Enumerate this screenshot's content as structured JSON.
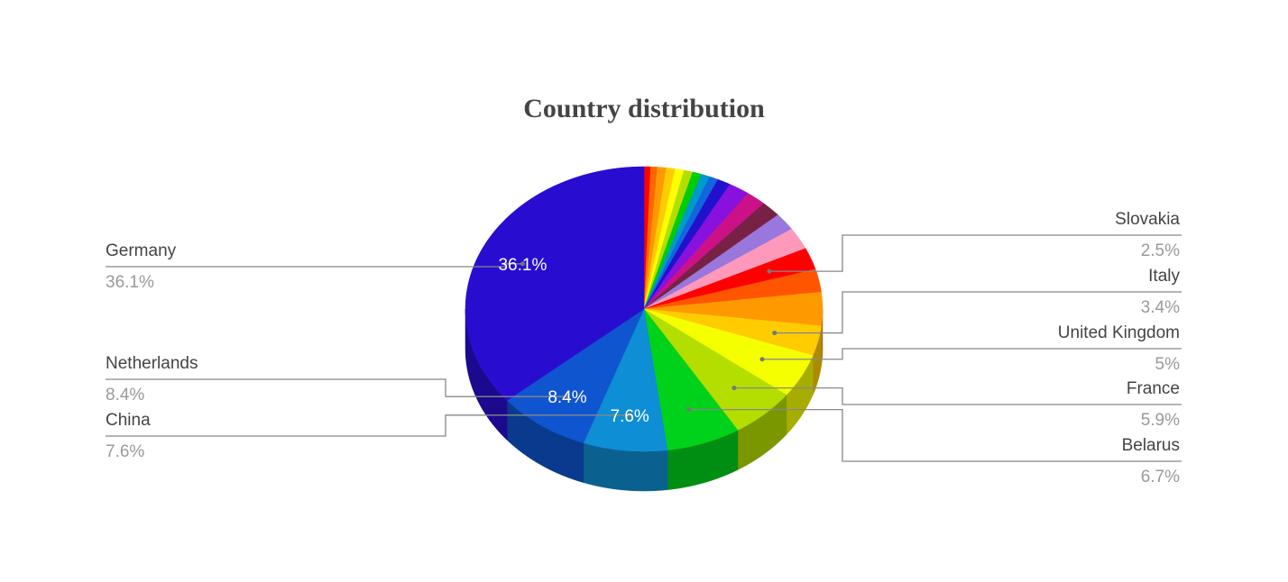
{
  "chart_data": {
    "type": "pie3d",
    "title": "Country distribution",
    "categories": [
      null,
      null,
      null,
      null,
      null,
      null,
      null,
      null,
      null,
      null,
      null,
      null,
      null,
      null,
      null,
      "Slovakia",
      null,
      null,
      "Italy",
      "United Kingdom",
      "France",
      "Belarus",
      "China",
      "Netherlands",
      "Germany"
    ],
    "values": [
      0.6,
      0.6,
      0.8,
      0.8,
      0.8,
      0.8,
      0.8,
      0.8,
      0.8,
      1.2,
      1.9,
      1.8,
      1.8,
      2.0,
      2.5,
      2.5,
      2.6,
      3.8,
      3.4,
      5,
      5.9,
      6.7,
      7.6,
      8.4,
      36.1
    ],
    "value_labels": [
      null,
      null,
      null,
      null,
      null,
      null,
      null,
      null,
      null,
      null,
      null,
      null,
      null,
      null,
      null,
      "2.5%",
      null,
      null,
      "3.4%",
      "5%",
      "5.9%",
      "6.7%",
      "7.6%",
      "8.4%",
      "36.1%"
    ],
    "colors": [
      "#ff0000",
      "#ff6600",
      "#ff9900",
      "#ffcc00",
      "#ffff00",
      "#b3de00",
      "#00cc00",
      "#0099cc",
      "#1166dd",
      "#2211cc",
      "#8811dd",
      "#cc1188",
      "#772244",
      "#9977dd",
      "#ff99bb",
      "#ff0000",
      "#ff5500",
      "#ff9900",
      "#ffcc00",
      "#f5ff00",
      "#b3de00",
      "#00d11a",
      "#0e8ed4",
      "#0f55d0",
      "#280dd1"
    ],
    "inside_labels": [
      22,
      23,
      24
    ]
  }
}
